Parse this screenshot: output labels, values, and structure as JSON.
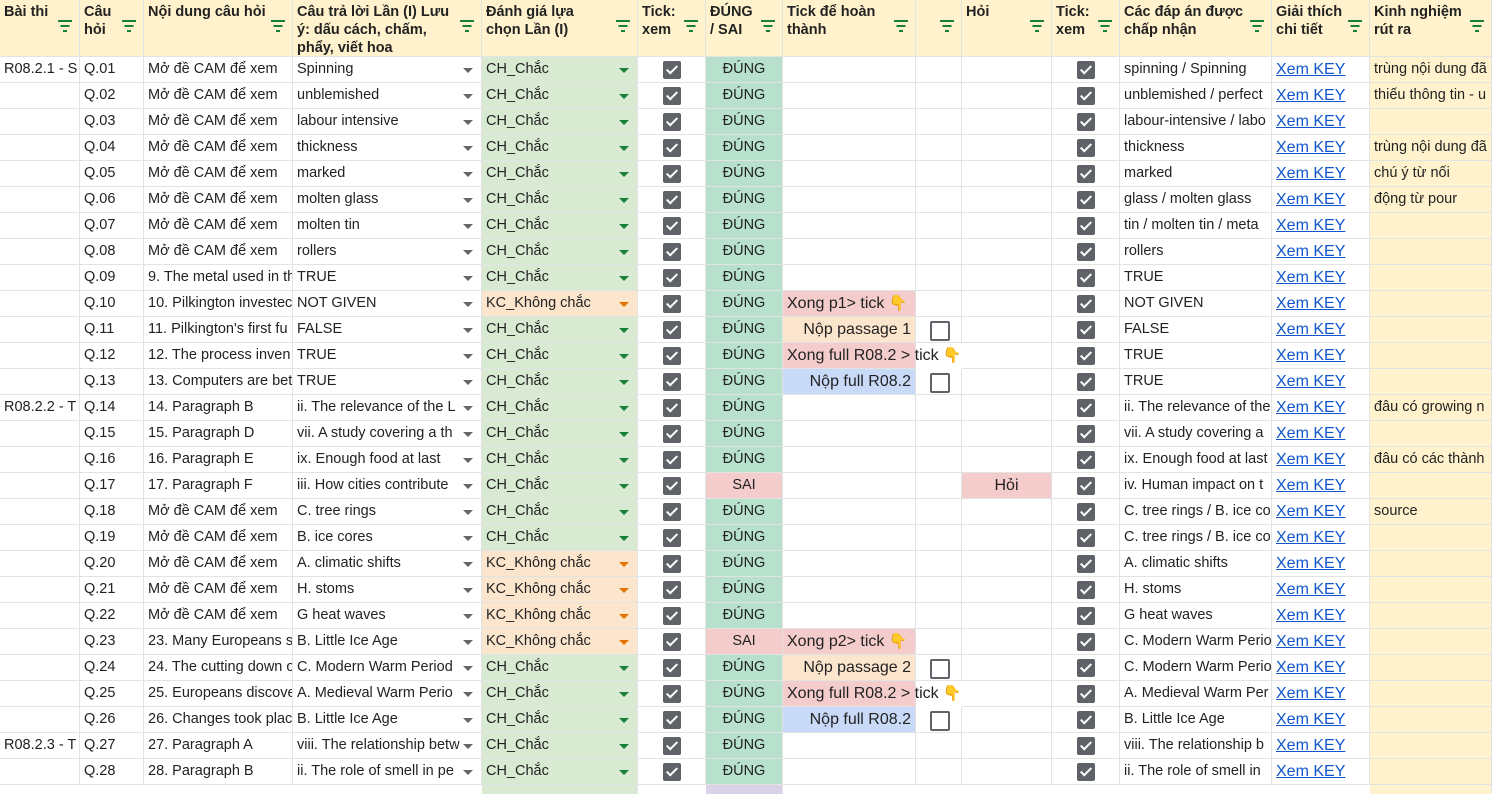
{
  "header": {
    "col_a": "Bài thi",
    "col_b": "Câu hỏi",
    "col_c": "Nội dung câu hỏi",
    "col_d": "Câu trả lời Lần (I) Lưu ý: dấu cách, chấm, phẩy, viết hoa",
    "col_e": "Đánh giá lựa chọn Lần (I)",
    "col_f": "Tick: xem",
    "col_g": "ĐÚNG / SAI",
    "col_h": "Tick để hoàn thành",
    "col_i": "",
    "col_j": "Hỏi",
    "col_k": "Tick: xem",
    "col_l": "Các đáp án được chấp nhận",
    "col_m": "Giải thích chi tiết",
    "col_n": "Kinh nghiệm rút ra"
  },
  "colors": {
    "header_bg": "#fff2cc",
    "confident": "#d9ead3",
    "unsure": "#fce5cd",
    "correct": "#b7e1cd",
    "wrong": "#f4cccc",
    "submit_full": "#c9daf8",
    "filter_icon": "#188038",
    "link": "#1155cc"
  },
  "icons": {
    "filter": "filter-icon",
    "dropdown": "dropdown-arrow-icon",
    "checkbox": "checkbox-icon",
    "hand": "pointing-hand-icon"
  },
  "rows": [
    {
      "a": "R08.2.1 - S",
      "b": "Q.01",
      "c": "Mở đề CAM để xem",
      "d": "Spinning",
      "e": "CH_Chắc",
      "e_type": "green",
      "g": "ĐÚNG",
      "g_type": "dgreen",
      "h": "",
      "h_type": "",
      "i": "",
      "j": "",
      "l": "spinning / Spinning",
      "m": "Xem KEY",
      "n": "trùng nội dung đã"
    },
    {
      "a": "",
      "b": "Q.02",
      "c": "Mở đề CAM để xem",
      "d": "unblemished",
      "e": "CH_Chắc",
      "e_type": "green",
      "g": "ĐÚNG",
      "g_type": "dgreen",
      "h": "",
      "h_type": "",
      "i": "",
      "j": "",
      "l": "unblemished / perfect",
      "m": "Xem KEY",
      "n": "thiếu thông tin - u"
    },
    {
      "a": "",
      "b": "Q.03",
      "c": "Mở đề CAM để xem",
      "d": "labour intensive",
      "e": "CH_Chắc",
      "e_type": "green",
      "g": "ĐÚNG",
      "g_type": "dgreen",
      "h": "",
      "h_type": "",
      "i": "",
      "j": "",
      "l": "labour-intensive / labo",
      "m": "Xem KEY",
      "n": ""
    },
    {
      "a": "",
      "b": "Q.04",
      "c": "Mở đề CAM để xem",
      "d": "thickness",
      "e": "CH_Chắc",
      "e_type": "green",
      "g": "ĐÚNG",
      "g_type": "dgreen",
      "h": "",
      "h_type": "",
      "i": "",
      "j": "",
      "l": "thickness",
      "m": "Xem KEY",
      "n": "trùng nội dung đã"
    },
    {
      "a": "",
      "b": "Q.05",
      "c": "Mở đề CAM để xem",
      "d": "marked",
      "e": "CH_Chắc",
      "e_type": "green",
      "g": "ĐÚNG",
      "g_type": "dgreen",
      "h": "",
      "h_type": "",
      "i": "",
      "j": "",
      "l": "marked",
      "m": "Xem KEY",
      "n": "chú ý từ nối"
    },
    {
      "a": "",
      "b": "Q.06",
      "c": "Mở đề CAM để xem",
      "d": "molten glass",
      "e": "CH_Chắc",
      "e_type": "green",
      "g": "ĐÚNG",
      "g_type": "dgreen",
      "h": "",
      "h_type": "",
      "i": "",
      "j": "",
      "l": "glass / molten glass",
      "m": "Xem KEY",
      "n": "động từ pour"
    },
    {
      "a": "",
      "b": "Q.07",
      "c": "Mở đề CAM để xem",
      "d": "molten tin",
      "e": "CH_Chắc",
      "e_type": "green",
      "g": "ĐÚNG",
      "g_type": "dgreen",
      "h": "",
      "h_type": "",
      "i": "",
      "j": "",
      "l": "tin / molten tin / meta",
      "m": "Xem KEY",
      "n": ""
    },
    {
      "a": "",
      "b": "Q.08",
      "c": "Mở đề CAM để xem",
      "d": "rollers",
      "e": "CH_Chắc",
      "e_type": "green",
      "g": "ĐÚNG",
      "g_type": "dgreen",
      "h": "",
      "h_type": "",
      "i": "",
      "j": "",
      "l": "rollers",
      "m": "Xem KEY",
      "n": ""
    },
    {
      "a": "",
      "b": "Q.09",
      "c": "9. The metal used in th",
      "d": "TRUE",
      "e": "CH_Chắc",
      "e_type": "green",
      "g": "ĐÚNG",
      "g_type": "dgreen",
      "h": "",
      "h_type": "",
      "i": "",
      "j": "",
      "l": "TRUE",
      "m": "Xem KEY",
      "n": ""
    },
    {
      "a": "",
      "b": "Q.10",
      "c": "10. Pilkington investec",
      "d": "NOT GIVEN",
      "e": "KC_Không chắc",
      "e_type": "orange",
      "g": "ĐÚNG",
      "g_type": "dgreen",
      "h": "Xong p1> tick",
      "h_type": "pink_hand",
      "i": "",
      "j": "",
      "l": "NOT GIVEN",
      "m": "Xem KEY",
      "n": ""
    },
    {
      "a": "",
      "b": "Q.11",
      "c": "11. Pilkington's first fu",
      "d": "FALSE",
      "e": "CH_Chắc",
      "e_type": "green",
      "g": "ĐÚNG",
      "g_type": "dgreen",
      "h": "Nộp passage 1",
      "h_type": "orange",
      "i": "box",
      "j": "",
      "l": "FALSE",
      "m": "Xem KEY",
      "n": ""
    },
    {
      "a": "",
      "b": "Q.12",
      "c": "12. The process inven",
      "d": "TRUE",
      "e": "CH_Chắc",
      "e_type": "green",
      "g": "ĐÚNG",
      "g_type": "dgreen",
      "h": "Xong full R08.2 > tick",
      "h_type": "pink_hand_over",
      "i": "",
      "j": "",
      "l": "TRUE",
      "m": "Xem KEY",
      "n": ""
    },
    {
      "a": "",
      "b": "Q.13",
      "c": "13. Computers are bet",
      "d": "TRUE",
      "e": "CH_Chắc",
      "e_type": "green",
      "g": "ĐÚNG",
      "g_type": "dgreen",
      "h": "Nộp full R08.2",
      "h_type": "blue",
      "i": "box",
      "j": "",
      "l": "TRUE",
      "m": "Xem KEY",
      "n": ""
    },
    {
      "a": "R08.2.2 - T",
      "b": "Q.14",
      "c": "14. Paragraph B",
      "d": "ii. The relevance of the L",
      "e": "CH_Chắc",
      "e_type": "green",
      "g": "ĐÚNG",
      "g_type": "dgreen",
      "h": "",
      "h_type": "",
      "i": "",
      "j": "",
      "l": "ii. The relevance of the",
      "m": "Xem KEY",
      "n": "đâu có growing n"
    },
    {
      "a": "",
      "b": "Q.15",
      "c": "15. Paragraph D",
      "d": "vii. A study covering a th",
      "e": "CH_Chắc",
      "e_type": "green",
      "g": "ĐÚNG",
      "g_type": "dgreen",
      "h": "",
      "h_type": "",
      "i": "",
      "j": "",
      "l": "vii. A study covering a",
      "m": "Xem KEY",
      "n": ""
    },
    {
      "a": "",
      "b": "Q.16",
      "c": "16. Paragraph E",
      "d": "ix. Enough food at last",
      "e": "CH_Chắc",
      "e_type": "green",
      "g": "ĐÚNG",
      "g_type": "dgreen",
      "h": "",
      "h_type": "",
      "i": "",
      "j": "",
      "l": "ix. Enough food at last",
      "m": "Xem KEY",
      "n": "đâu có các thành"
    },
    {
      "a": "",
      "b": "Q.17",
      "c": "17. Paragraph F",
      "d": "iii. How cities contribute",
      "e": "CH_Chắc",
      "e_type": "green",
      "g": "SAI",
      "g_type": "pink",
      "h": "",
      "h_type": "",
      "i": "",
      "j": "Hỏi",
      "l": "iv. Human impact on t",
      "m": "Xem KEY",
      "n": ""
    },
    {
      "a": "",
      "b": "Q.18",
      "c": "Mở đề CAM để xem",
      "d": "C. tree rings",
      "e": "CH_Chắc",
      "e_type": "green",
      "g": "ĐÚNG",
      "g_type": "dgreen",
      "h": "",
      "h_type": "",
      "i": "",
      "j": "",
      "l": "C. tree rings / B. ice co",
      "m": "Xem KEY",
      "n": "source"
    },
    {
      "a": "",
      "b": "Q.19",
      "c": "Mở đề CAM để xem",
      "d": "B. ice cores",
      "e": "CH_Chắc",
      "e_type": "green",
      "g": "ĐÚNG",
      "g_type": "dgreen",
      "h": "",
      "h_type": "",
      "i": "",
      "j": "",
      "l": "C. tree rings / B. ice co",
      "m": "Xem KEY",
      "n": ""
    },
    {
      "a": "",
      "b": "Q.20",
      "c": "Mở đề CAM để xem",
      "d": "A. climatic shifts",
      "e": "KC_Không chắc",
      "e_type": "orange",
      "g": "ĐÚNG",
      "g_type": "dgreen",
      "h": "",
      "h_type": "",
      "i": "",
      "j": "",
      "l": "A. climatic shifts",
      "m": "Xem KEY",
      "n": ""
    },
    {
      "a": "",
      "b": "Q.21",
      "c": "Mở đề CAM để xem",
      "d": "H. stoms",
      "e": "KC_Không chắc",
      "e_type": "orange",
      "g": "ĐÚNG",
      "g_type": "dgreen",
      "h": "",
      "h_type": "",
      "i": "",
      "j": "",
      "l": "H. stoms",
      "m": "Xem KEY",
      "n": ""
    },
    {
      "a": "",
      "b": "Q.22",
      "c": "Mở đề CAM để xem",
      "d": "G heat waves",
      "e": "KC_Không chắc",
      "e_type": "orange",
      "g": "ĐÚNG",
      "g_type": "dgreen",
      "h": "",
      "h_type": "",
      "i": "",
      "j": "",
      "l": "G heat waves",
      "m": "Xem KEY",
      "n": ""
    },
    {
      "a": "",
      "b": "Q.23",
      "c": "23. Many Europeans s",
      "d": "B. Little Ice Age",
      "e": "KC_Không chắc",
      "e_type": "orange",
      "g": "SAI",
      "g_type": "pink",
      "h": "Xong p2> tick",
      "h_type": "pink_hand",
      "i": "",
      "j": "",
      "l": "C. Modern Warm Perio",
      "m": "Xem KEY",
      "n": ""
    },
    {
      "a": "",
      "b": "Q.24",
      "c": "24. The cutting down o",
      "d": "C. Modern Warm Period",
      "e": "CH_Chắc",
      "e_type": "green",
      "g": "ĐÚNG",
      "g_type": "dgreen",
      "h": "Nộp passage 2",
      "h_type": "orange",
      "i": "box",
      "j": "",
      "l": "C. Modern Warm Perio",
      "m": "Xem KEY",
      "n": ""
    },
    {
      "a": "",
      "b": "Q.25",
      "c": "25. Europeans discove",
      "d": "A. Medieval Warm Perio",
      "e": "CH_Chắc",
      "e_type": "green",
      "g": "ĐÚNG",
      "g_type": "dgreen",
      "h": "Xong full R08.2 > tick",
      "h_type": "pink_hand_over",
      "i": "",
      "j": "",
      "l": "A. Medieval Warm Per",
      "m": "Xem KEY",
      "n": ""
    },
    {
      "a": "",
      "b": "Q.26",
      "c": "26. Changes took plac",
      "d": "B. Little Ice Age",
      "e": "CH_Chắc",
      "e_type": "green",
      "g": "ĐÚNG",
      "g_type": "dgreen",
      "h": "Nộp full R08.2",
      "h_type": "blue",
      "i": "box",
      "j": "",
      "l": "B. Little Ice Age",
      "m": "Xem KEY",
      "n": ""
    },
    {
      "a": "R08.2.3 - T",
      "b": "Q.27",
      "c": "27. Paragraph A",
      "d": "viii. The relationship betw",
      "e": "CH_Chắc",
      "e_type": "green",
      "g": "ĐÚNG",
      "g_type": "dgreen",
      "h": "",
      "h_type": "",
      "i": "",
      "j": "",
      "l": "viii. The relationship b",
      "m": "Xem KEY",
      "n": ""
    },
    {
      "a": "",
      "b": "Q.28",
      "c": "28. Paragraph B",
      "d": "ii. The role of smell in pe",
      "e": "CH_Chắc",
      "e_type": "green",
      "g": "ĐÚNG",
      "g_type": "dgreen",
      "h": "",
      "h_type": "",
      "i": "",
      "j": "",
      "l": "ii. The role of smell in",
      "m": "Xem KEY",
      "n": ""
    }
  ]
}
